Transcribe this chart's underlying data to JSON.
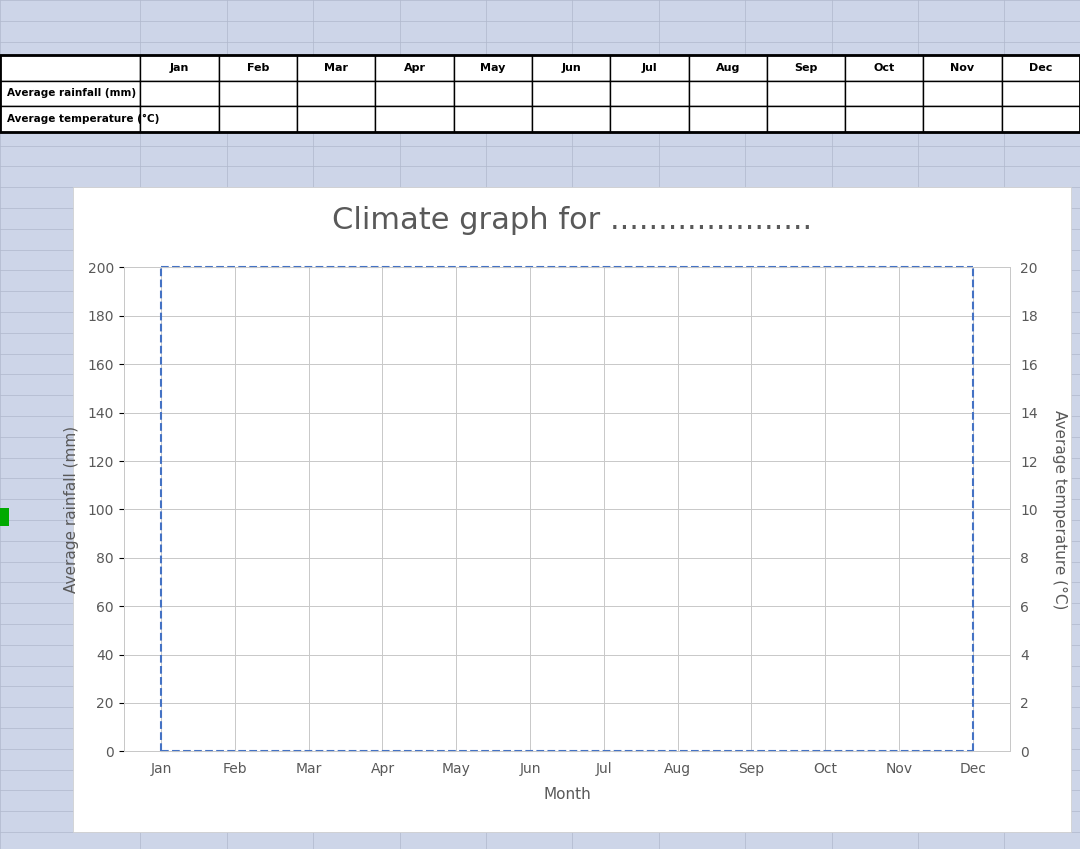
{
  "title": "Climate graph for .....................",
  "title_fontsize": 22,
  "title_color": "#595959",
  "months": [
    "Jan",
    "Feb",
    "Mar",
    "Apr",
    "May",
    "Jun",
    "Jul",
    "Aug",
    "Sep",
    "Oct",
    "Nov",
    "Dec"
  ],
  "xlabel": "Month",
  "ylabel_left": "Average rainfall (mm)",
  "ylabel_right": "Average temperature (°C)",
  "ylim_left": [
    0,
    200
  ],
  "ylim_right": [
    0,
    20
  ],
  "yticks_left": [
    0,
    20,
    40,
    60,
    80,
    100,
    120,
    140,
    160,
    180,
    200
  ],
  "yticks_right": [
    0,
    2,
    4,
    6,
    8,
    10,
    12,
    14,
    16,
    18,
    20
  ],
  "grid_color": "#c8c8c8",
  "dashed_border_color": "#4472c4",
  "legend_rainfall_color": "#4472c4",
  "legend_temp_color": "#ed7d31",
  "legend_rainfall_label": "Average rainfall (mm)",
  "legend_temp_label": "Average temperature (°C)",
  "plot_bg_color": "#ffffff",
  "chart_outer_bg": "#ffffff",
  "axis_label_color": "#595959",
  "tick_label_color": "#595959",
  "axis_label_fontsize": 11,
  "tick_fontsize": 10,
  "excel_cell_bg": "#cdd5e8",
  "excel_line_color": "#b0b8cc",
  "table_bg": "#ffffff",
  "table_border_color": "#000000",
  "table_text_color": "#000000",
  "table_header_fontsize": 8,
  "table_row_fontsize": 7.5,
  "fig_bg_color": "#cdd5e8"
}
